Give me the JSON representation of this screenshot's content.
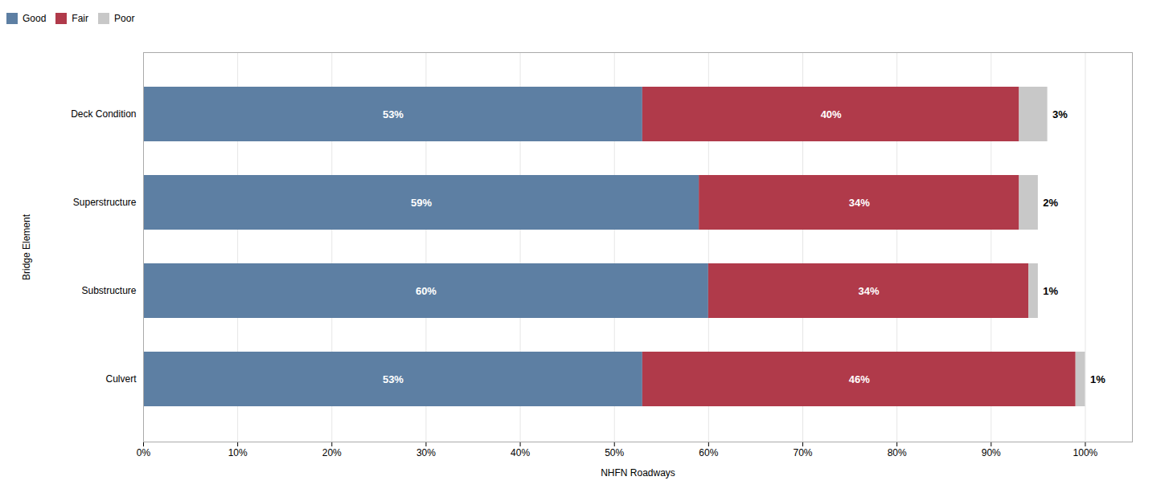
{
  "chart_data": {
    "type": "bar",
    "orientation": "horizontal",
    "stacked": true,
    "categories": [
      "Deck Condition",
      "Superstructure",
      "Substructure",
      "Culvert"
    ],
    "series": [
      {
        "name": "Good",
        "color": "#5d7fa3",
        "values": [
          53,
          59,
          60,
          53
        ],
        "value_labels": [
          "53%",
          "59%",
          "60%",
          "53%"
        ]
      },
      {
        "name": "Fair",
        "color": "#b03a4a",
        "values": [
          40,
          34,
          34,
          46
        ],
        "value_labels": [
          "40%",
          "34%",
          "34%",
          "46%"
        ]
      },
      {
        "name": "Poor",
        "color": "#c8c8c8",
        "values": [
          3,
          2,
          1,
          1
        ],
        "value_labels": [
          "3%",
          "2%",
          "1%",
          "1%"
        ]
      }
    ],
    "xlabel": "NHFN Roadways",
    "ylabel": "Bridge Element",
    "xlim": [
      0,
      105
    ],
    "xticks": [
      {
        "value": 0,
        "label": "0%"
      },
      {
        "value": 10,
        "label": "10%"
      },
      {
        "value": 20,
        "label": "20%"
      },
      {
        "value": 30,
        "label": "30%"
      },
      {
        "value": 40,
        "label": "40%"
      },
      {
        "value": 50,
        "label": "50%"
      },
      {
        "value": 60,
        "label": "60%"
      },
      {
        "value": 70,
        "label": "70%"
      },
      {
        "value": 80,
        "label": "80%"
      },
      {
        "value": 90,
        "label": "90%"
      },
      {
        "value": 100,
        "label": "100%"
      }
    ],
    "grid": true,
    "legend": "top",
    "data_labels": true
  }
}
